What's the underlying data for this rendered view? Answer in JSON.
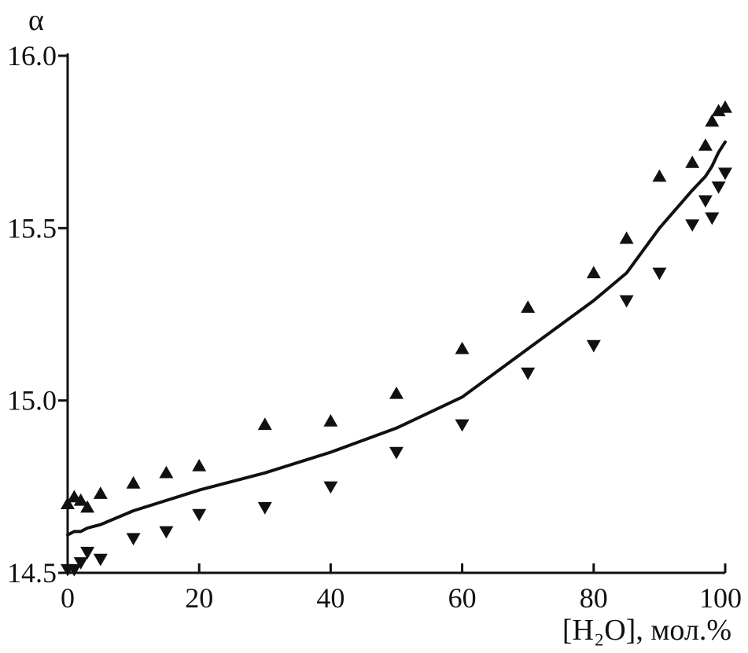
{
  "chart_data": {
    "type": "scatter",
    "title": "",
    "xlabel": "[H₂O], мол.%",
    "ylabel": "α",
    "xlim": [
      0,
      100
    ],
    "ylim": [
      14.5,
      16.0
    ],
    "x_ticks": [
      "0",
      "20",
      "40",
      "60",
      "80",
      "100"
    ],
    "y_ticks": [
      "14.5",
      "15.0",
      "15.5",
      "16.0"
    ],
    "series": [
      {
        "marker": "triangle-up",
        "x": [
          0,
          1,
          2,
          3,
          5,
          10,
          15,
          20,
          30,
          40,
          50,
          60,
          70,
          80,
          85,
          90,
          95,
          97,
          98,
          99,
          100
        ],
        "y": [
          14.7,
          14.72,
          14.71,
          14.69,
          14.73,
          14.76,
          14.79,
          14.81,
          14.93,
          14.94,
          15.02,
          15.15,
          15.27,
          15.37,
          15.47,
          15.65,
          15.69,
          15.74,
          15.81,
          15.84,
          15.85
        ]
      },
      {
        "marker": "triangle-down",
        "x": [
          0,
          1,
          2,
          3,
          5,
          10,
          15,
          20,
          30,
          40,
          50,
          60,
          70,
          80,
          85,
          90,
          95,
          97,
          98,
          99,
          100
        ],
        "y": [
          14.51,
          14.51,
          14.53,
          14.56,
          14.54,
          14.6,
          14.62,
          14.67,
          14.69,
          14.75,
          14.85,
          14.93,
          15.08,
          15.16,
          15.29,
          15.37,
          15.51,
          15.58,
          15.53,
          15.62,
          15.66
        ]
      },
      {
        "marker": "line",
        "x": [
          0,
          1,
          2,
          3,
          5,
          10,
          15,
          20,
          30,
          40,
          50,
          60,
          70,
          80,
          85,
          90,
          95,
          97,
          98,
          99,
          100
        ],
        "y": [
          14.61,
          14.62,
          14.62,
          14.63,
          14.64,
          14.68,
          14.71,
          14.74,
          14.79,
          14.85,
          14.92,
          15.01,
          15.15,
          15.29,
          15.37,
          15.5,
          15.61,
          15.65,
          15.68,
          15.72,
          15.75
        ]
      }
    ]
  }
}
